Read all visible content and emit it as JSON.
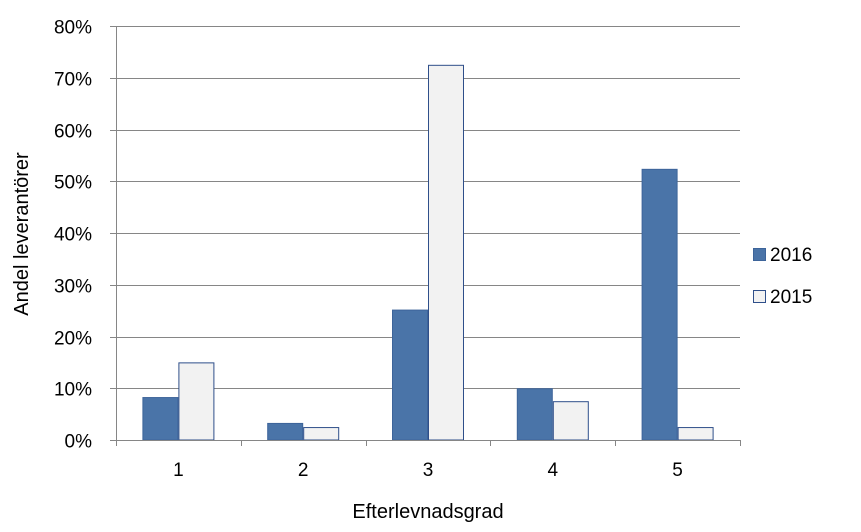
{
  "chart_data": {
    "type": "bar",
    "title": "",
    "xlabel": "Efterlevnadsgrad",
    "ylabel": "Andel leverantörer",
    "categories": [
      "1",
      "2",
      "3",
      "4",
      "5"
    ],
    "series": [
      {
        "name": "2016",
        "values": [
          0.083,
          0.033,
          0.252,
          0.1,
          0.524
        ],
        "color": "#4a74a8",
        "border": "#3d649a"
      },
      {
        "name": "2015",
        "values": [
          0.15,
          0.025,
          0.725,
          0.075,
          0.025
        ],
        "color": "#f2f2f2",
        "border": "#2f4f8a"
      }
    ],
    "ylim": [
      0,
      0.8
    ],
    "yticks": [
      0,
      0.1,
      0.2,
      0.3,
      0.4,
      0.5,
      0.6,
      0.7,
      0.8
    ],
    "ytick_labels": [
      "0%",
      "10%",
      "20%",
      "30%",
      "40%",
      "50%",
      "60%",
      "70%",
      "80%"
    ],
    "grid": true,
    "legend": "right"
  }
}
